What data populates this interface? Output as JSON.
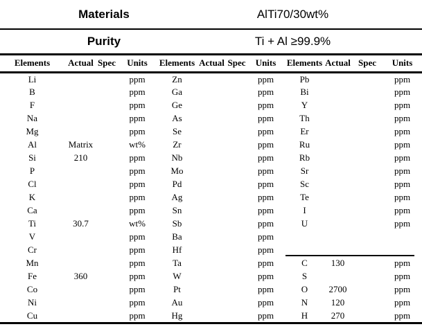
{
  "table": {
    "info_rows": [
      {
        "label": "Materials",
        "value": "AlTi70/30wt%"
      },
      {
        "label": "Purity",
        "value": "Ti + Al ≥99.9%"
      }
    ],
    "column_headers": [
      "Elements",
      "Actual",
      "Spec",
      "Units"
    ],
    "groups": [
      {
        "rows": [
          {
            "element": "Li",
            "actual": "",
            "spec": "",
            "units": "ppm"
          },
          {
            "element": "B",
            "actual": "",
            "spec": "",
            "units": "ppm"
          },
          {
            "element": "F",
            "actual": "",
            "spec": "",
            "units": "ppm"
          },
          {
            "element": "Na",
            "actual": "",
            "spec": "",
            "units": "ppm"
          },
          {
            "element": "Mg",
            "actual": "",
            "spec": "",
            "units": "ppm"
          },
          {
            "element": "Al",
            "actual": "Matrix",
            "spec": "",
            "units": "wt%"
          },
          {
            "element": "Si",
            "actual": "210",
            "spec": "",
            "units": "ppm"
          },
          {
            "element": "P",
            "actual": "",
            "spec": "",
            "units": "ppm"
          },
          {
            "element": "Cl",
            "actual": "",
            "spec": "",
            "units": "ppm"
          },
          {
            "element": "K",
            "actual": "",
            "spec": "",
            "units": "ppm"
          },
          {
            "element": "Ca",
            "actual": "",
            "spec": "",
            "units": "ppm"
          },
          {
            "element": "Ti",
            "actual": "30.7",
            "spec": "",
            "units": "wt%"
          },
          {
            "element": "V",
            "actual": "",
            "spec": "",
            "units": "ppm"
          },
          {
            "element": "Cr",
            "actual": "",
            "spec": "",
            "units": "ppm"
          },
          {
            "element": "Mn",
            "actual": "",
            "spec": "",
            "units": "ppm"
          },
          {
            "element": "Fe",
            "actual": "360",
            "spec": "",
            "units": "ppm"
          },
          {
            "element": "Co",
            "actual": "",
            "spec": "",
            "units": "ppm"
          },
          {
            "element": "Ni",
            "actual": "",
            "spec": "",
            "units": "ppm"
          },
          {
            "element": "Cu",
            "actual": "",
            "spec": "",
            "units": "ppm"
          }
        ]
      },
      {
        "rows": [
          {
            "element": "Zn",
            "actual": "",
            "spec": "",
            "units": "ppm"
          },
          {
            "element": "Ga",
            "actual": "",
            "spec": "",
            "units": "ppm"
          },
          {
            "element": "Ge",
            "actual": "",
            "spec": "",
            "units": "ppm"
          },
          {
            "element": "As",
            "actual": "",
            "spec": "",
            "units": "ppm"
          },
          {
            "element": "Se",
            "actual": "",
            "spec": "",
            "units": "ppm"
          },
          {
            "element": "Zr",
            "actual": "",
            "spec": "",
            "units": "ppm"
          },
          {
            "element": "Nb",
            "actual": "",
            "spec": "",
            "units": "ppm"
          },
          {
            "element": "Mo",
            "actual": "",
            "spec": "",
            "units": "ppm"
          },
          {
            "element": "Pd",
            "actual": "",
            "spec": "",
            "units": "ppm"
          },
          {
            "element": "Ag",
            "actual": "",
            "spec": "",
            "units": "ppm"
          },
          {
            "element": "Sn",
            "actual": "",
            "spec": "",
            "units": "ppm"
          },
          {
            "element": "Sb",
            "actual": "",
            "spec": "",
            "units": "ppm"
          },
          {
            "element": "Ba",
            "actual": "",
            "spec": "",
            "units": "ppm"
          },
          {
            "element": "Hf",
            "actual": "",
            "spec": "",
            "units": "ppm"
          },
          {
            "element": "Ta",
            "actual": "",
            "spec": "",
            "units": "ppm"
          },
          {
            "element": "W",
            "actual": "",
            "spec": "",
            "units": "ppm"
          },
          {
            "element": "Pt",
            "actual": "",
            "spec": "",
            "units": "ppm"
          },
          {
            "element": "Au",
            "actual": "",
            "spec": "",
            "units": "ppm"
          },
          {
            "element": "Hg",
            "actual": "",
            "spec": "",
            "units": "ppm"
          }
        ]
      },
      {
        "separator_before_row_index": 14,
        "rows": [
          {
            "element": "Pb",
            "actual": "",
            "spec": "",
            "units": "ppm"
          },
          {
            "element": "Bi",
            "actual": "",
            "spec": "",
            "units": "ppm"
          },
          {
            "element": "Y",
            "actual": "",
            "spec": "",
            "units": "ppm"
          },
          {
            "element": "Th",
            "actual": "",
            "spec": "",
            "units": "ppm"
          },
          {
            "element": "Er",
            "actual": "",
            "spec": "",
            "units": "ppm"
          },
          {
            "element": "Ru",
            "actual": "",
            "spec": "",
            "units": "ppm"
          },
          {
            "element": "Rb",
            "actual": "",
            "spec": "",
            "units": "ppm"
          },
          {
            "element": "Sr",
            "actual": "",
            "spec": "",
            "units": "ppm"
          },
          {
            "element": "Sc",
            "actual": "",
            "spec": "",
            "units": "ppm"
          },
          {
            "element": "Te",
            "actual": "",
            "spec": "",
            "units": "ppm"
          },
          {
            "element": "I",
            "actual": "",
            "spec": "",
            "units": "ppm"
          },
          {
            "element": "U",
            "actual": "",
            "spec": "",
            "units": "ppm"
          },
          {
            "element": "",
            "actual": "",
            "spec": "",
            "units": ""
          },
          {
            "element": "",
            "actual": "",
            "spec": "",
            "units": ""
          },
          {
            "element": "C",
            "actual": "130",
            "spec": "",
            "units": "ppm"
          },
          {
            "element": "S",
            "actual": "",
            "spec": "",
            "units": "ppm"
          },
          {
            "element": "O",
            "actual": "2700",
            "spec": "",
            "units": "ppm"
          },
          {
            "element": "N",
            "actual": "120",
            "spec": "",
            "units": "ppm"
          },
          {
            "element": "H",
            "actual": "270",
            "spec": "",
            "units": "ppm"
          }
        ]
      }
    ]
  }
}
